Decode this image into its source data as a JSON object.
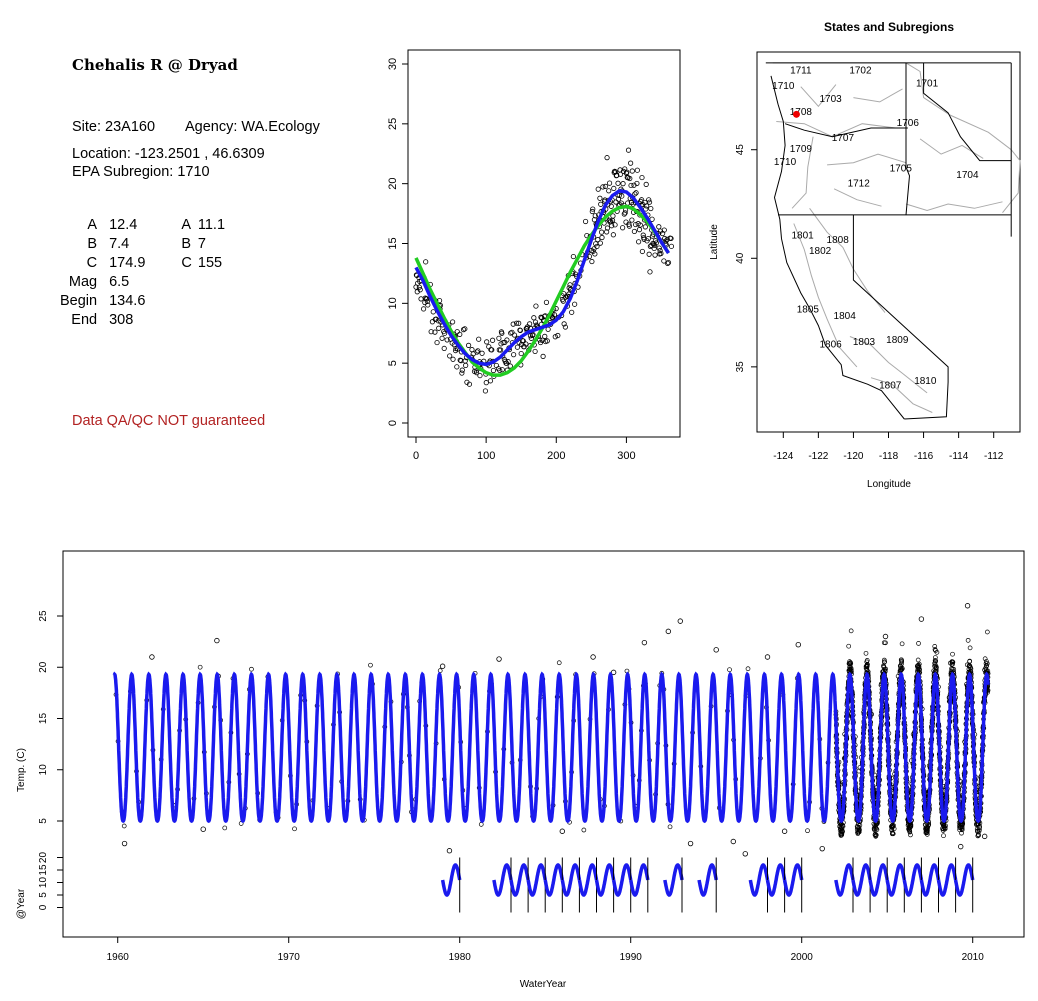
{
  "info": {
    "site_title": "Chehalis R @ Dryad",
    "site": "Site: 23A160",
    "agency": "Agency: WA.Ecology",
    "location": "Location: -123.2501 , 46.6309",
    "subregion": "EPA Subregion: 1710",
    "params": [
      {
        "label": "A",
        "value": "12.4",
        "label2": "A",
        "value2": "11.1"
      },
      {
        "label": "B",
        "value": "7.4",
        "label2": "B",
        "value2": "7"
      },
      {
        "label": "C",
        "value": "174.9",
        "label2": "C",
        "value2": "155"
      },
      {
        "label": "Mag",
        "value": "6.5",
        "label2": "",
        "value2": ""
      },
      {
        "label": "Begin",
        "value": "134.6",
        "label2": "",
        "value2": ""
      },
      {
        "label": "End",
        "value": "308",
        "label2": "",
        "value2": ""
      }
    ],
    "qa_note": "Data QA/QC NOT guaranteed",
    "qa_color": "#b22222"
  },
  "chart_data": [
    {
      "type": "scatter",
      "title": "",
      "xlabel": "",
      "ylabel": "",
      "xlim": [
        0,
        365
      ],
      "ylim": [
        0,
        30
      ],
      "x_ticks": [
        0,
        100,
        200,
        300
      ],
      "y_ticks": [
        0,
        5,
        10,
        15,
        20,
        25,
        30
      ],
      "series": [
        {
          "kind": "points",
          "color": "#000000",
          "x": [
            0,
            10,
            20,
            30,
            40,
            50,
            60,
            70,
            80,
            90,
            100,
            110,
            120,
            130,
            140,
            150,
            160,
            170,
            180,
            190,
            200,
            210,
            220,
            230,
            240,
            250,
            260,
            270,
            280,
            290,
            300,
            310,
            320,
            330,
            340,
            350,
            360
          ],
          "y": [
            12.5,
            11.5,
            10.2,
            9.0,
            8.0,
            7.1,
            6.3,
            5.7,
            5.3,
            5.1,
            5.1,
            5.3,
            5.8,
            6.3,
            6.8,
            7.2,
            7.5,
            7.7,
            7.9,
            8.2,
            8.8,
            9.7,
            11.0,
            12.5,
            14.2,
            15.9,
            17.3,
            18.4,
            19.1,
            19.4,
            19.2,
            18.6,
            17.8,
            16.9,
            15.9,
            14.9,
            14.0
          ]
        },
        {
          "kind": "line",
          "color": "#22cc22",
          "x": [
            0,
            10,
            20,
            30,
            40,
            50,
            60,
            70,
            80,
            90,
            100,
            110,
            120,
            130,
            140,
            150,
            160,
            170,
            180,
            190,
            200,
            210,
            220,
            230,
            240,
            250,
            260,
            270,
            280,
            290,
            300,
            310,
            320,
            330,
            340,
            350,
            360
          ],
          "y": [
            13.8,
            12.5,
            11.2,
            10.0,
            8.8,
            7.7,
            6.7,
            5.9,
            5.1,
            4.6,
            4.2,
            4.0,
            4.0,
            4.2,
            4.6,
            5.2,
            6.0,
            6.9,
            7.9,
            9.0,
            10.2,
            11.4,
            12.6,
            13.7,
            14.8,
            15.7,
            16.5,
            17.2,
            17.7,
            18.0,
            18.1,
            17.9,
            17.4,
            16.8,
            16.0,
            15.1,
            14.2
          ]
        },
        {
          "kind": "line",
          "color": "#1a1aee",
          "x": [
            0,
            10,
            20,
            30,
            40,
            50,
            60,
            70,
            80,
            90,
            100,
            110,
            120,
            130,
            140,
            150,
            160,
            170,
            180,
            190,
            200,
            210,
            220,
            230,
            240,
            250,
            260,
            270,
            280,
            290,
            300,
            310,
            320,
            330,
            340,
            350,
            360
          ],
          "y": [
            13.0,
            11.9,
            10.6,
            9.4,
            8.3,
            7.3,
            6.5,
            5.8,
            5.3,
            5.0,
            4.9,
            5.1,
            5.5,
            6.1,
            6.7,
            7.2,
            7.6,
            7.8,
            8.0,
            8.2,
            8.6,
            9.3,
            10.4,
            11.9,
            13.6,
            15.3,
            16.9,
            18.2,
            19.0,
            19.4,
            19.3,
            18.8,
            18.0,
            17.1,
            16.1,
            15.1,
            14.2
          ]
        }
      ]
    },
    {
      "type": "map",
      "title": "States and Subregions",
      "xlabel": "Longitude",
      "ylabel": "Latitude",
      "xlim": [
        -125.5,
        -110.5
      ],
      "ylim": [
        32,
        49.5
      ],
      "x_ticks": [
        -124,
        -122,
        -120,
        -118,
        -116,
        -114,
        -112
      ],
      "y_ticks": [
        35,
        40,
        45
      ],
      "regions": [
        {
          "label": "1711",
          "lon": -123.0,
          "lat": 48.5
        },
        {
          "label": "1702",
          "lon": -119.6,
          "lat": 48.5
        },
        {
          "label": "1701",
          "lon": -115.8,
          "lat": 47.9
        },
        {
          "label": "1710",
          "lon": -124.0,
          "lat": 47.8
        },
        {
          "label": "1703",
          "lon": -121.3,
          "lat": 47.2
        },
        {
          "label": "1708",
          "lon": -123.0,
          "lat": 46.6
        },
        {
          "label": "1706",
          "lon": -116.9,
          "lat": 46.1
        },
        {
          "label": "1707",
          "lon": -120.6,
          "lat": 45.4
        },
        {
          "label": "1709",
          "lon": -123.0,
          "lat": 44.9
        },
        {
          "label": "1710",
          "lon": -123.9,
          "lat": 44.3
        },
        {
          "label": "1705",
          "lon": -117.3,
          "lat": 44.0
        },
        {
          "label": "1704",
          "lon": -113.5,
          "lat": 43.7
        },
        {
          "label": "1712",
          "lon": -119.7,
          "lat": 43.3
        },
        {
          "label": "1801",
          "lon": -122.9,
          "lat": 40.9
        },
        {
          "label": "1808",
          "lon": -120.9,
          "lat": 40.7
        },
        {
          "label": "1802",
          "lon": -121.9,
          "lat": 40.2
        },
        {
          "label": "1805",
          "lon": -122.6,
          "lat": 37.5
        },
        {
          "label": "1804",
          "lon": -120.5,
          "lat": 37.2
        },
        {
          "label": "1806",
          "lon": -121.3,
          "lat": 35.9
        },
        {
          "label": "1803",
          "lon": -119.4,
          "lat": 36.0
        },
        {
          "label": "1809",
          "lon": -117.5,
          "lat": 36.1
        },
        {
          "label": "1810",
          "lon": -115.9,
          "lat": 34.2
        },
        {
          "label": "1807",
          "lon": -117.9,
          "lat": 34.0
        }
      ],
      "site_marker": {
        "lon": -123.25,
        "lat": 46.63,
        "color": "#ee0000"
      },
      "outline_color": "#000000",
      "subregion_color": "#aaaaaa"
    },
    {
      "type": "line",
      "title": "",
      "xlabel": "WaterYear",
      "ylabel": "Temp. (C)",
      "xlim": [
        1956.8,
        2013.0
      ],
      "ylim": [
        0,
        30
      ],
      "x_ticks": [
        1960,
        1970,
        1980,
        1990,
        2000,
        2010
      ],
      "y_ticks": [
        5,
        10,
        15,
        20,
        25
      ],
      "series": [
        {
          "name": "",
          "kind": "line",
          "color": "#1a1aee",
          "start": 1959.8,
          "end": 2010.9,
          "min": 5.0,
          "max": 19.3,
          "peak_fraction": 0.82
        }
      ],
      "dense_point_years": [
        2002,
        2010.9
      ],
      "outliers": [
        {
          "x": 1960.4,
          "y": 2.8
        },
        {
          "x": 1962.0,
          "y": 21.0
        },
        {
          "x": 1965.0,
          "y": 4.2
        },
        {
          "x": 1965.8,
          "y": 22.6
        },
        {
          "x": 1979.0,
          "y": 20.1
        },
        {
          "x": 1979.4,
          "y": 2.1
        },
        {
          "x": 1982.3,
          "y": 20.8
        },
        {
          "x": 1986.0,
          "y": 4.0
        },
        {
          "x": 1987.8,
          "y": 21.0
        },
        {
          "x": 1989.0,
          "y": 19.5
        },
        {
          "x": 1990.8,
          "y": 22.4
        },
        {
          "x": 1992.2,
          "y": 23.5
        },
        {
          "x": 1992.9,
          "y": 24.5
        },
        {
          "x": 1993.5,
          "y": 2.8
        },
        {
          "x": 1995.0,
          "y": 21.7
        },
        {
          "x": 1996.0,
          "y": 3.0
        },
        {
          "x": 1996.7,
          "y": 1.8
        },
        {
          "x": 1998.0,
          "y": 21.0
        },
        {
          "x": 1999.0,
          "y": 4.0
        },
        {
          "x": 1999.8,
          "y": 22.2
        },
        {
          "x": 2001.2,
          "y": 2.3
        },
        {
          "x": 2004.9,
          "y": 23.0
        },
        {
          "x": 2007.0,
          "y": 24.7
        },
        {
          "x": 2009.3,
          "y": 2.5
        },
        {
          "x": 2009.7,
          "y": 26.0
        },
        {
          "x": 2010.7,
          "y": 3.5
        }
      ]
    },
    {
      "type": "line",
      "title": "",
      "xlabel": "",
      "ylabel": "@Year",
      "ylim": [
        -5,
        27
      ],
      "y_ticks": [
        0,
        5,
        10,
        15,
        20
      ],
      "color": "#1a1aee",
      "years": [
        1979,
        1982,
        1983,
        1984,
        1985,
        1986,
        1987,
        1988,
        1989,
        1990,
        1992,
        1994,
        1997,
        1998,
        1999,
        2002,
        2003,
        2004,
        2005,
        2006,
        2007,
        2008,
        2009
      ],
      "min": 5,
      "max": 17
    }
  ]
}
